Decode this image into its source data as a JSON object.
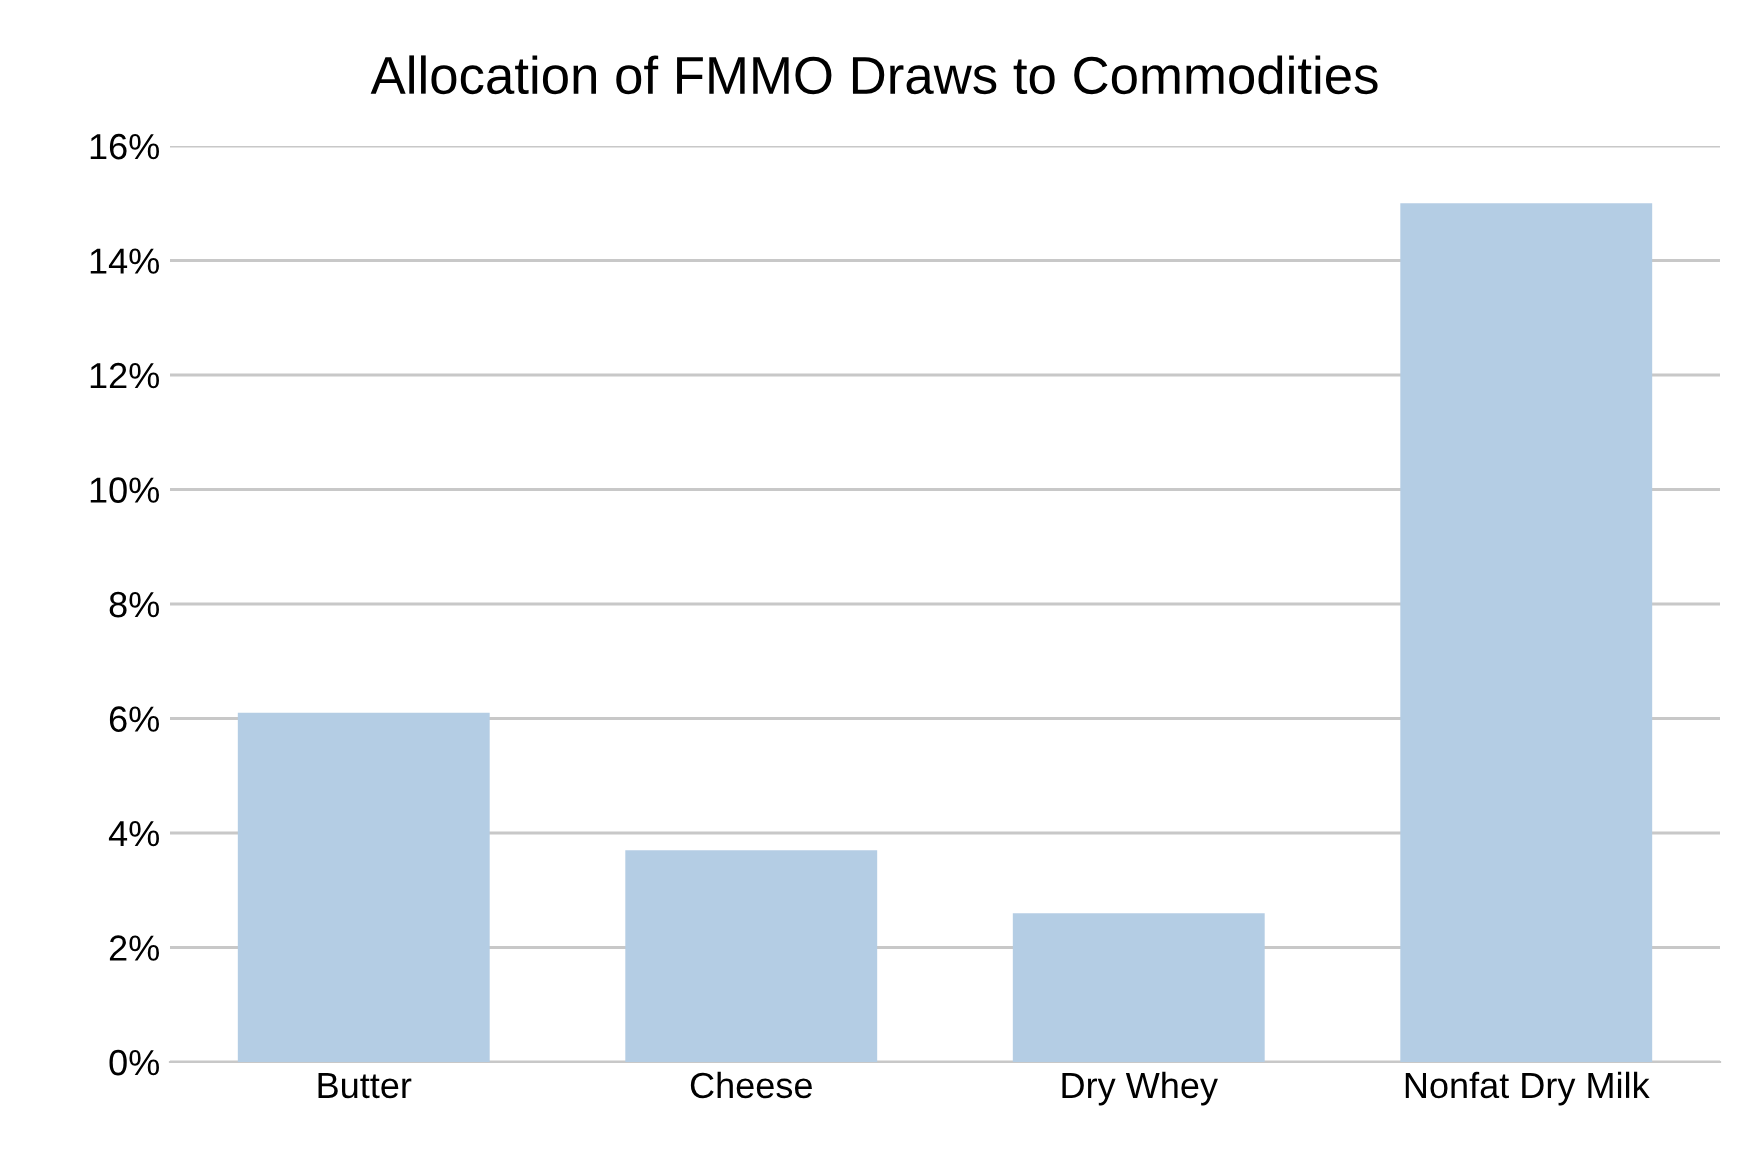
{
  "chart_data": {
    "type": "bar",
    "title": "Allocation of FMMO Draws to Commodities",
    "categories": [
      "Butter",
      "Cheese",
      "Dry Whey",
      "Nonfat Dry Milk"
    ],
    "values": [
      6.1,
      3.7,
      2.6,
      15.0
    ],
    "color": "#b4cde4",
    "ylim": [
      0,
      16
    ],
    "yticks": [
      {
        "value": 0,
        "label": "0%"
      },
      {
        "value": 2,
        "label": "2%"
      },
      {
        "value": 4,
        "label": "4%"
      },
      {
        "value": 6,
        "label": "6%"
      },
      {
        "value": 8,
        "label": "8%"
      },
      {
        "value": 10,
        "label": "10%"
      },
      {
        "value": 12,
        "label": "12%"
      },
      {
        "value": 14,
        "label": "14%"
      },
      {
        "value": 16,
        "label": "16%"
      }
    ],
    "grid": "y",
    "legend": false
  }
}
